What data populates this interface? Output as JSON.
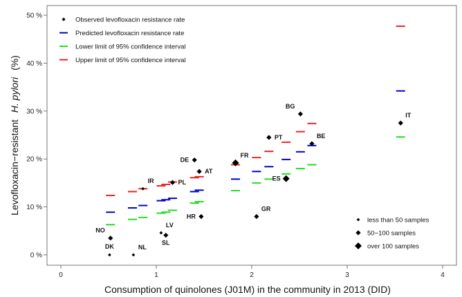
{
  "chart_data": {
    "type": "scatter",
    "xlabel": "Consumption of quinolones (J01M) in the community in 2013 (DID)",
    "ylabel_prefix": "Levofloxacin−resistant",
    "ylabel_italic": "H. pylori",
    "ylabel_suffix": "(%)",
    "xlim": [
      0,
      4
    ],
    "ylim": [
      0,
      50
    ],
    "x_ticks": [
      0,
      1,
      2,
      3,
      4
    ],
    "x_tick_labels": [
      "0",
      "1",
      "2",
      "3",
      "4"
    ],
    "y_ticks": [
      0,
      10,
      20,
      30,
      40,
      50
    ],
    "y_tick_labels": [
      "0 %",
      "10 %",
      "20 %",
      "30 %",
      "40 %",
      "50 %"
    ],
    "grid": false,
    "legend": {
      "placement": "top-left",
      "entries": [
        {
          "label": "Observed levofloxacin resistance rate",
          "color": "#000000",
          "marker": "diamond"
        },
        {
          "label": "Predicted levofloxacin resistance rate",
          "color": "#0000cc",
          "marker": "dash"
        },
        {
          "label": "Lower limit of 95% confidence interval",
          "color": "#22dd22",
          "marker": "dash"
        },
        {
          "label": "Upper limit of 95% confidence interval",
          "color": "#ee2222",
          "marker": "dash"
        }
      ]
    },
    "size_legend": {
      "placement": "bottom-right",
      "entries": [
        {
          "label": "less than 50 samples",
          "size": "small"
        },
        {
          "label": "50−100 samples",
          "size": "medium"
        },
        {
          "label": "over 100 samples",
          "size": "large"
        }
      ]
    },
    "observed": [
      {
        "country": "NO",
        "x": 0.52,
        "y": 3.5,
        "size": "medium",
        "label_pos": "above-left"
      },
      {
        "country": "DK",
        "x": 0.51,
        "y": 0.0,
        "size": "small",
        "label_pos": "above"
      },
      {
        "country": "NL",
        "x": 0.76,
        "y": 0.0,
        "size": "small",
        "label_pos": "above-right"
      },
      {
        "country": "IR",
        "x": 0.86,
        "y": 13.8,
        "size": "small",
        "label_pos": "above-right"
      },
      {
        "country": "LV",
        "x": 1.05,
        "y": 4.6,
        "size": "small",
        "label_pos": "above-right"
      },
      {
        "country": "SL",
        "x": 1.1,
        "y": 4.1,
        "size": "medium",
        "label_pos": "below"
      },
      {
        "country": "PL",
        "x": 1.17,
        "y": 15.1,
        "size": "medium",
        "label_pos": "right"
      },
      {
        "country": "DE",
        "x": 1.4,
        "y": 19.8,
        "size": "medium",
        "label_pos": "left"
      },
      {
        "country": "AT",
        "x": 1.45,
        "y": 17.4,
        "size": "medium",
        "label_pos": "right"
      },
      {
        "country": "HR",
        "x": 1.47,
        "y": 8.0,
        "size": "medium",
        "label_pos": "left"
      },
      {
        "country": "FR",
        "x": 1.83,
        "y": 19.2,
        "size": "large",
        "label_pos": "above-right"
      },
      {
        "country": "GR",
        "x": 2.05,
        "y": 8.0,
        "size": "medium",
        "label_pos": "above-right"
      },
      {
        "country": "PT",
        "x": 2.18,
        "y": 24.5,
        "size": "medium",
        "label_pos": "right"
      },
      {
        "country": "ES",
        "x": 2.36,
        "y": 15.9,
        "size": "large",
        "label_pos": "left"
      },
      {
        "country": "BG",
        "x": 2.51,
        "y": 29.4,
        "size": "medium",
        "label_pos": "above-left"
      },
      {
        "country": "BE",
        "x": 2.63,
        "y": 23.2,
        "size": "medium",
        "label_pos": "above-right"
      },
      {
        "country": "IT",
        "x": 3.56,
        "y": 27.5,
        "size": "medium",
        "label_pos": "above-right"
      }
    ],
    "predicted": [
      {
        "x": 0.52,
        "y": 8.9
      },
      {
        "x": 0.75,
        "y": 9.8
      },
      {
        "x": 0.86,
        "y": 10.3
      },
      {
        "x": 1.05,
        "y": 11.3
      },
      {
        "x": 1.1,
        "y": 11.5
      },
      {
        "x": 1.17,
        "y": 11.8
      },
      {
        "x": 1.4,
        "y": 13.2
      },
      {
        "x": 1.45,
        "y": 13.5
      },
      {
        "x": 1.83,
        "y": 15.8
      },
      {
        "x": 2.05,
        "y": 17.4
      },
      {
        "x": 2.18,
        "y": 18.4
      },
      {
        "x": 2.36,
        "y": 19.9
      },
      {
        "x": 2.51,
        "y": 21.5
      },
      {
        "x": 2.63,
        "y": 22.8
      },
      {
        "x": 3.56,
        "y": 34.2
      }
    ],
    "lower_ci": [
      {
        "x": 0.52,
        "y": 6.3
      },
      {
        "x": 0.75,
        "y": 7.4
      },
      {
        "x": 0.86,
        "y": 7.8
      },
      {
        "x": 1.05,
        "y": 8.7
      },
      {
        "x": 1.1,
        "y": 8.9
      },
      {
        "x": 1.17,
        "y": 9.3
      },
      {
        "x": 1.4,
        "y": 10.8
      },
      {
        "x": 1.45,
        "y": 11.1
      },
      {
        "x": 1.83,
        "y": 13.4
      },
      {
        "x": 2.05,
        "y": 15.0
      },
      {
        "x": 2.18,
        "y": 15.8
      },
      {
        "x": 2.36,
        "y": 16.9
      },
      {
        "x": 2.51,
        "y": 18.0
      },
      {
        "x": 2.63,
        "y": 18.8
      },
      {
        "x": 3.56,
        "y": 24.6
      }
    ],
    "upper_ci": [
      {
        "x": 0.52,
        "y": 12.4
      },
      {
        "x": 0.75,
        "y": 13.2
      },
      {
        "x": 0.86,
        "y": 13.8
      },
      {
        "x": 1.05,
        "y": 14.4
      },
      {
        "x": 1.1,
        "y": 14.7
      },
      {
        "x": 1.17,
        "y": 15.2
      },
      {
        "x": 1.4,
        "y": 16.1
      },
      {
        "x": 1.45,
        "y": 16.3
      },
      {
        "x": 1.83,
        "y": 18.8
      },
      {
        "x": 2.05,
        "y": 20.3
      },
      {
        "x": 2.18,
        "y": 21.6
      },
      {
        "x": 2.36,
        "y": 23.5
      },
      {
        "x": 2.51,
        "y": 25.7
      },
      {
        "x": 2.63,
        "y": 27.4
      },
      {
        "x": 3.56,
        "y": 47.7
      }
    ]
  }
}
